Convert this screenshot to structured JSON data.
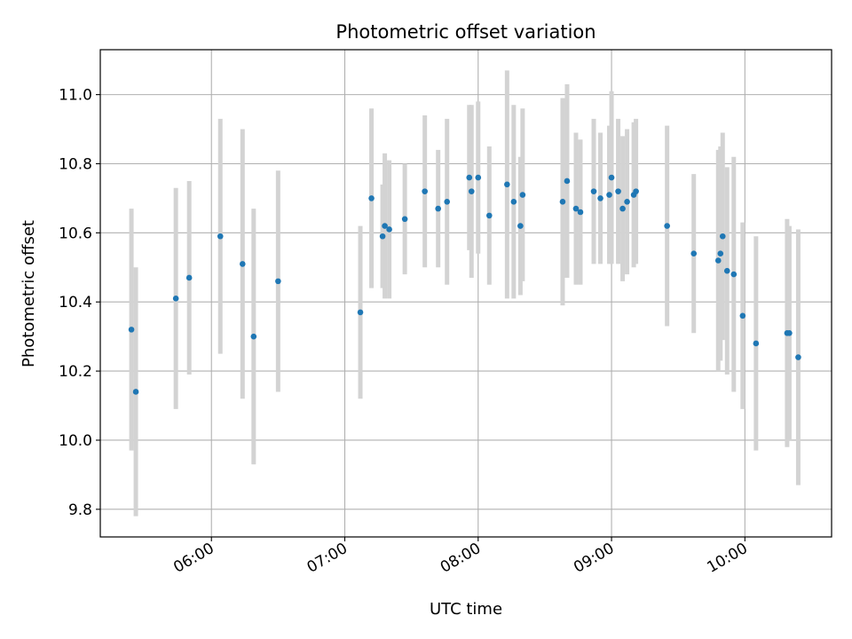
{
  "chart_data": {
    "type": "scatter",
    "title": "Photometric offset variation",
    "xlabel": "UTC time",
    "ylabel": "Photometric offset",
    "grid": true,
    "legend": "none",
    "x_is_time": true,
    "xlim": [
      "05:10",
      "10:39"
    ],
    "ylim": [
      9.72,
      11.13
    ],
    "xticks": [
      "06:00",
      "07:00",
      "08:00",
      "09:00",
      "10:00"
    ],
    "yticks": [
      "9.8",
      "10.0",
      "10.2",
      "10.4",
      "10.6",
      "10.8",
      "11.0"
    ],
    "colors": {
      "point": "#1f77b4",
      "errorbar": "#d3d3d3",
      "grid": "#b0b0b0"
    },
    "series": [
      {
        "x": [
          "05:24",
          "05:26",
          "05:44",
          "05:50",
          "06:04",
          "06:14",
          "06:19",
          "06:30",
          "07:07",
          "07:12",
          "07:17",
          "07:18",
          "07:20",
          "07:27",
          "07:36",
          "07:42",
          "07:46",
          "07:56",
          "07:57",
          "08:00",
          "08:05",
          "08:13",
          "08:16",
          "08:19",
          "08:20",
          "08:38",
          "08:40",
          "08:44",
          "08:46",
          "08:52",
          "08:55",
          "08:59",
          "09:00",
          "09:03",
          "09:05",
          "09:07",
          "09:10",
          "09:11",
          "09:25",
          "09:37",
          "09:48",
          "09:49",
          "09:50",
          "09:52",
          "09:55",
          "09:59",
          "10:05",
          "10:19",
          "10:20",
          "10:24"
        ],
        "y": [
          10.32,
          10.14,
          10.41,
          10.47,
          10.59,
          10.51,
          10.3,
          10.46,
          10.37,
          10.7,
          10.59,
          10.62,
          10.61,
          10.64,
          10.72,
          10.67,
          10.69,
          10.76,
          10.72,
          10.76,
          10.65,
          10.74,
          10.69,
          10.62,
          10.71,
          10.69,
          10.75,
          10.67,
          10.66,
          10.72,
          10.7,
          10.71,
          10.76,
          10.72,
          10.67,
          10.69,
          10.71,
          10.72,
          10.62,
          10.54,
          10.52,
          10.54,
          10.59,
          10.49,
          10.48,
          10.36,
          10.28,
          10.31,
          10.31,
          10.24
        ],
        "yerr": [
          0.35,
          0.36,
          0.32,
          0.28,
          0.34,
          0.39,
          0.37,
          0.32,
          0.25,
          0.26,
          0.15,
          0.21,
          0.2,
          0.16,
          0.22,
          0.17,
          0.24,
          0.21,
          0.25,
          0.22,
          0.2,
          0.33,
          0.28,
          0.2,
          0.25,
          0.3,
          0.28,
          0.22,
          0.21,
          0.21,
          0.19,
          0.2,
          0.25,
          0.21,
          0.21,
          0.21,
          0.21,
          0.21,
          0.29,
          0.23,
          0.32,
          0.31,
          0.3,
          0.3,
          0.34,
          0.27,
          0.31,
          0.33,
          0.31,
          0.37
        ]
      }
    ]
  }
}
